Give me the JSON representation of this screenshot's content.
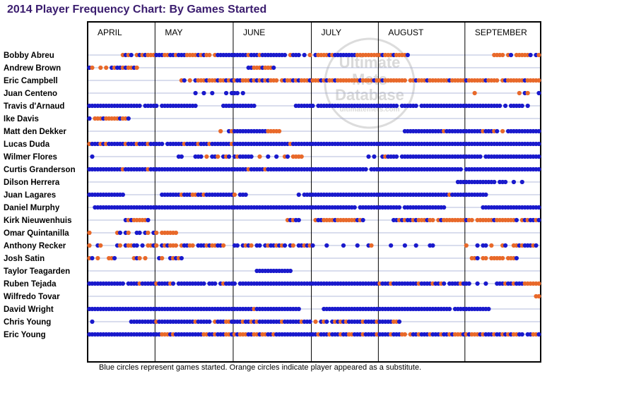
{
  "chart_data": {
    "type": "scatter",
    "title": "2014 Player Frequency Chart: By Games Started",
    "note": "Blue circles represent games started. Orange circles indicate player appeared as a substitute.",
    "months": [
      "APRIL",
      "MAY",
      "JUNE",
      "JULY",
      "AUGUST",
      "SEPTEMBER"
    ],
    "legend": [
      {
        "label": "games started",
        "color": "#1a1acc"
      },
      {
        "label": "appeared as a substitute",
        "color": "#e8692a"
      }
    ],
    "watermark": [
      "Ultimate",
      "Mets",
      "Database",
      "ultimatemets.com"
    ],
    "game_range": [
      1,
      162
    ],
    "players": [
      {
        "name": "Bobby Abreu",
        "games": "13o,14b,15o,16b,18o,19b,20o,21b,22o,23o,24o,25b,26b,27b,28o,29o,30b,31b,32o,33b,34b,35b,36o,37o,38o,39o,40b,41o,42b,43o,44o,46o,47b,48b,49b,50b,51b,52b,53b,54b,55b,56b,57b,58o,59b,60b,61b,62o,63b,64b,65b,66b,67b,68b,69b,70b,71b,73o,74b,75b,76b,78b,80o,82b,83o,84o,85o,86o,87b,88o,89b,90b,91b,92b,93b,94b,95b,96b,97o,98o,99o,100o,101o,102o,103o,104o,105o,106b,107o,108o,109o,110b,111o,112o,113o,114o,115b,146o,147o,148o,149o,151o,152b,154o,155o,156o,157o,158o,159b,161b,162o"
      },
      {
        "name": "Andrew Brown",
        "games": "1b,2o,5o,7o,9b,10o,11b,12b,13o,14b,15o,16o,17b,18o,58b,59b,60o,61o,62o,63b,64o,65o,66o,67b"
      },
      {
        "name": "Eric Campbell",
        "games": "34o,35b,37o,39b,40o,41o,42o,43b,44o,45o,46o,47b,48o,49o,50b,51o,52b,53o,54b,55b,56o,57o,58o,59b,60o,61b,62o,63b,64o,65b,66o,67o,68o,70o,71b,72o,73o,74b,75o,76b,77o,78o,79o,80b,81o,82o,83o,84b,85o,86b,87o,88o,89b,90o,91o,92o,93o,94o,95o,96o,97o,98b,99o,100o,101o,102o,103b,104o,105o,106b,107o,108o,109o,110o,111o,112o,113o,114o,116o,117o,118b,119o,120o,121o,122b,123o,124o,125o,126o,127o,128o,129o,130b,131o,132o,133o,134o,135o,136b,137o,138o,139o,140o,141o,142o,143b,144o,145o,146o,147o,149o,150b,151o,152o,153o,154o,155o,156o,157b,158o,159o,160o,161o,162o"
      },
      {
        "name": "Juan Centeno",
        "games": "39b,42b,45b,50b,52b,53b,54b,56b,139o,155o,157b,158o,162b"
      },
      {
        "name": "Travis d'Arnaud",
        "games": "1b,2b,3b,4b,5b,6b,7b,8b,9b,10b,11b,12b,13b,14b,15b,16b,17b,18b,19b,21b,22b,23b,24b,25b,27b,28b,29b,30b,31b,32b,33b,34b,35b,36b,37b,38b,39b,49b,50b,51b,52b,53b,54b,55b,56b,57b,58b,59b,60b,75b,76b,77b,78b,79b,80b,81b,83b,84b,85b,86b,87b,88b,89b,90b,91b,92b,93b,94b,95b,96b,97b,98b,99b,100b,101b,102b,103b,104b,105b,106b,107b,108b,109b,110b,111b,113b,114b,115b,116b,117b,118b,120b,121b,122b,123b,124b,125b,126b,127b,128b,129b,130b,131b,132b,133b,134b,135b,136b,137b,138b,139b,140b,141b,142b,143b,144b,145b,146b,147b,148b,150b,152b,153b,154b,155b,156b,158b"
      },
      {
        "name": "Ike Davis",
        "games": "1b,3o,4o,5o,6b,7o,8o,9o,10o,11o,12b,13o,14o,15b"
      },
      {
        "name": "Matt den Dekker",
        "games": "48o,51b,52o,53b,54b,55b,56b,57b,58b,59b,60b,61b,62b,63b,64b,65o,66o,67o,68o,69o,114b,115b,116b,117b,118b,119b,120b,121b,122b,123b,124b,125b,126b,127b,128o,129b,130b,131b,132b,133b,134b,135b,136b,137b,138b,139b,140b,141b,142o,143b,144b,145b,146o,147b,149o,151b,152b,153b,154b,155b,156b,157b,158b,159b,160b,161b,162b"
      },
      {
        "name": "Lucas Duda",
        "games": "1o,2b,3b,4b,5o,6b,7o,8b,9b,10b,11b,12b,13b,14o,15b,16b,17b,18o,19b,20b,21b,22o,23b,24b,25b,26b,27b,29b,30b,31b,32b,33b,34b,35o,36b,37b,38b,39b,40o,41b,42b,43b,44o,45b,46b,47b,48b,49b,50b,51b,52o,53b,54b,55b,56b,57b,58b,59b,60b,61b,62b,63b,64b,65b,66b,67b,68b,69b,70b,71b,72b,73o,74b,75b,76b,77b,78b,79b,80b,81b,82b,83b,84b,85b,86b,87b,88b,89b,90b,91b,92b,93b,94b,95b,96b,97b,98b,99b,100b,101b,102b,103b,104b,105b,106b,107b,108b,109b,110b,111b,112b,113b,114b,115b,116b,117b,118b,119b,120b,121b,122b,123b,124b,125b,126b,127b,128b,129b,130b,131b,132b,133b,134b,135b,136b,137b,138b,139b,140b,141b,142b,143b,144b,145b,146b,147b,148b,149b,150b,151b,152b,153b,154b,155b,156b,157b,158b,159b,160b,161b,162b"
      },
      {
        "name": "Wilmer Flores",
        "games": "2b,33b,34b,39b,40b,41b,43o,45b,46b,47o,49b,50o,51b,53b,54o,55b,56b,57b,58b,59b,62o,65b,68b,71o,72b,74o,75o,76o,77o,101b,103b,106b,107o,108b,109b,110b,111b,113b,114b,115b,116b,117b,118b,119b,120b,121b,122b,123b,124b,125b,126b,127b,128b,129b,130b,131b,132b,133b,134b,135b,136b,137b,138b,139b,140b,141b,143b,144b,145b,146b,147b,148b,149b,150b,151b,152b,153b,154b,155b,156b,157b,158b,159b,160b,161b,162b"
      },
      {
        "name": "Curtis Granderson",
        "games": "1b,2b,3b,4b,5b,6b,7b,8b,9b,10b,11b,12b,13o,14b,15b,16b,17b,18b,19b,20b,21b,22o,23b,24b,25b,26b,27b,28b,29b,30b,31b,32b,33b,34b,35b,36b,37b,38b,39b,40b,41b,42b,43b,44b,45b,46b,47b,48b,49b,50b,51b,52b,53b,54b,55b,56b,57b,58o,59b,60b,61b,62b,63b,64o,65b,66b,67b,68b,69b,70b,71b,72b,73b,74b,75b,76b,77b,78b,79b,80b,81b,82b,83b,84b,85b,86b,87b,88b,89b,90b,91b,92b,93b,94b,95b,96b,97b,98b,99b,100b,102b,103b,104b,105b,106b,107b,108b,109b,110b,111b,112b,113b,114b,115b,116b,117b,118b,119b,120b,121b,122b,123b,124b,125b,126b,127b,128b,129b,130b,131b,132b,133b,134b,136b,137b,138b,139b,140b,141b,142b,143b,144b,145b,146b,147b,148b,149b,150b,151b,152b,153b,154b,155b,156b,157b,158b,159b,160b,161b,162b"
      },
      {
        "name": "Dilson Herrera",
        "games": "133b,134b,135b,136b,137b,138b,139b,140b,141b,142b,143b,144b,145b,146b,148b,149b,150b,153b,156b"
      },
      {
        "name": "Juan Lagares",
        "games": "1b,2b,3b,4b,5b,6b,7b,8b,9b,10b,11b,12b,13b,27b,28b,29b,30b,31b,32b,33b,34o,35b,36b,37b,38o,39o,40b,41b,42o,43b,44b,45b,46b,47b,48b,49b,50b,51b,52b,53o,55b,56b,57b,76b,78b,79b,80b,81b,82b,83b,84b,85b,86b,87b,88b,89b,90b,91b,92b,93b,94b,95b,96b,97b,98b,99b,100b,101b,102b,103b,104b,105b,106b,107b,108b,109b,110b,111b,112b,113b,114b,115b,116b,117b,118b,119b,120b,121b,122b,123b,124b,125b,126b,127b,128b,129b,130o,131b,132b,133b,134b,135b,136b,137b,138b,139b,140b,141b,142b,143b"
      },
      {
        "name": "Daniel Murphy",
        "games": "3b,4b,5b,6b,7b,8b,9b,10b,11b,12b,13b,14b,15b,16b,17b,18b,19b,20b,21b,22b,23b,24b,25b,26b,27b,28b,29b,30b,31b,32b,33b,34b,35b,36b,37b,38b,39b,40b,41b,42b,43b,44b,45b,46b,47b,48b,49b,50b,51b,52b,53b,54b,55b,56b,57b,58b,59b,60b,61b,62b,63b,64b,65b,66b,67b,68b,69b,70b,71b,72b,73b,74b,75b,76b,77b,78b,79b,80b,81b,82b,83b,84b,85b,86b,87b,88b,89b,90b,91b,92b,93b,94b,95b,96b,98b,99b,100b,101b,102b,103b,104b,105b,106b,107b,108b,109b,110b,111b,112b,114b,115b,116b,117b,118b,119b,120b,121b,122b,123b,124b,125b,126b,127b,128b,142b,143b,144b,145b,146b,147b,148b,149b,150b,151b,152b,153b,154b,155b,156b,157b,158b,159b,160b,161b,162b"
      },
      {
        "name": "Kirk Nieuwenhuis",
        "games": "14b,15o,16b,17o,18o,19o,20o,21o,22b,72o,73b,74o,75b,76b,82o,83b,84b,85o,86o,87o,88o,89b,90o,91o,92o,93o,94o,95o,96o,97b,98o,99b,110b,111b,112o,113b,114o,115b,116b,117o,118b,119o,120o,121o,122b,123o,124o,126o,127b,128o,129o,130o,131o,132o,133o,134o,135o,136b,137o,138o,140o,141o,142o,143o,144o,145o,146b,147o,148o,149o,150o,151o,152o,153o,154b,156o,157b,158o,159b,160b,161o,162b"
      },
      {
        "name": "Omar Quintanilla",
        "games": "1o,11o,12b,14b,15o,18b,19b,21b,22o,24b,25o,27o,28o,29o,30o,31o,32o"
      },
      {
        "name": "Anthony Recker",
        "games": "1o,4b,5o,11b,12o,14b,15o,16o,17b,18b,20b,22o,23o,24b,25o,27b,28o,29b,30o,31o,32o,34o,35b,36b,37o,38o,40b,41b,42b,43o,44b,45o,46o,47b,48b,49o,53b,54b,56b,57o,58b,59o,61b,62b,64b,65o,66b,67b,68o,69b,70o,71b,73b,74o,76b,77b,78o,79b,80o,81b,86b,92b,97b,101b,102o,109b,114b,118b,123b,124b,136o,140b,142b,143b,145o,149o,150b,153o,154o,155b,156o,157b,158b,159b,160o,161b"
      },
      {
        "name": "Josh Satin",
        "games": "1o,2b,4o,8o,9o,10b,17o,18b,19o,21o,26b,27o,30b,31o,32b,33o,34b,138o,139o,140b,142o,143o,145o,146o,147o,148o,149o,151o,152o,153o,154b"
      },
      {
        "name": "Taylor Teagarden",
        "games": "61b,62b,63b,64b,65b,66b,67b,68b,69b,70b,71b,72b,73b"
      },
      {
        "name": "Ruben Tejada",
        "games": "1b,2b,3b,4b,5b,6b,7b,8b,9b,10b,11b,12b,13b,15b,16b,17b,18b,19o,20b,21b,22b,23b,24b,25o,26b,27b,28b,29b,30o,31b,33b,34b,35b,36b,37b,38b,39b,40b,41b,42b,44b,45b,46b,48b,49o,50b,51b,52b,53b,55b,56b,57b,58b,59b,60b,61b,62b,63b,64b,65b,66b,67b,68b,69b,70b,71b,72b,73b,74b,75b,76b,77b,78b,79b,80b,81b,82b,83b,84b,85b,86b,87b,88b,89b,90b,91b,92b,93b,94b,95b,96b,97b,98b,99b,100b,101b,102b,103b,104b,105o,106b,107b,108b,109o,110b,111b,112b,113b,114b,115b,116b,117b,118b,119o,120b,121b,122b,123b,124o,125b,126b,127o,128b,130b,131b,132b,133b,134o,135b,136b,137b,140b,143b,147b,148b,149b,150o,151b,152b,153o,154b,155b,156b,157o,158o,159o,160o,161o,162o"
      },
      {
        "name": "Wilfredo Tovar",
        "games": "161o,162o"
      },
      {
        "name": "David Wright",
        "games": "1b,2b,3b,4b,5b,6b,7b,8b,9b,10b,11b,12b,13b,14b,15b,16b,17b,18b,19b,20b,21b,22b,23b,24b,25b,26b,27b,28b,29b,30b,31b,32b,33b,34b,35b,36b,37b,38b,39b,40b,41b,42b,43b,44b,45b,46b,47b,48b,49b,50b,51b,52b,53b,54b,55b,56b,57b,58b,59b,60o,61b,62b,63b,64b,65b,66b,67b,68b,69b,70b,71b,72b,73b,74b,75b,76b,85b,86b,87b,88b,89b,90b,91b,92b,93b,94b,95b,96b,97b,98b,99b,100b,101b,102b,103b,104b,105b,106b,107b,108b,109b,110b,111b,112b,113b,114b,115b,116b,117b,118b,119b,120b,121b,122b,123b,124b,125b,126b,127b,128b,129b,130b,132b,133b,134b,135b,136b,137b,138b,139b,140b,141b,142b,143b,144b"
      },
      {
        "name": "Chris Young",
        "games": "2b,16b,17b,18b,19b,20b,21b,22b,23b,24b,25o,26b,27b,28b,29b,30b,31b,32b,33b,34b,35b,36b,37b,38b,39o,40b,41b,42b,43b,44b,46o,47b,48b,49b,50o,51o,52b,53b,54b,55b,56o,57b,58b,59o,60b,61o,62b,63b,64b,65b,66b,67b,68b,69b,70o,71b,72b,73b,74b,75b,76b,77o,78b,79b,80b,82o,84b,85o,86b,88b,89o,90b,91o,92b,93o,94b,95b,96b,97b,98b,99o,100b,101b,102b,103b,104o,105b,106b,107b,108b,109b,110o,111o,112b"
      },
      {
        "name": "Eric Young",
        "games": "1b,2b,3b,4b,5b,6b,7b,8b,9b,10b,11b,12b,13b,14b,15b,16b,17b,18b,19b,20b,21b,22b,23b,24b,25b,26b,27o,28o,29o,30b,31o,32b,33b,34b,35b,36b,37b,38b,39b,40b,41b,42o,43o,44b,45b,46o,47b,48b,49b,50o,51o,52b,53o,54b,55o,56o,57o,58b,59b,60o,61o,62b,63o,64o,65b,66b,67o,68b,69b,70b,71b,72b,73b,74b,75b,76b,77b,78b,79b,80b,81b,82b,83o,84b,85b,86b,87o,88b,89b,90b,91o,92b,93b,94o,95o,96b,97b,98b,99o,100b,101b,102b,103b,104o,105b,106b,107b,108b,109o,110b,111b,112b,113o,114o,116o,117b,118b,119o,120b,121b,122b,123o,124b,125b,126b,127o,128b,129b,130o,131b,132o,133o,134o,135b,136o,137b,138o,139o,140o,141b,142o,143b,144b,145b,146o,147b,148b,149o,150b,151o,152b,153o,154o,155b,156b,158b,159b,160o,161o,162b"
      }
    ]
  }
}
